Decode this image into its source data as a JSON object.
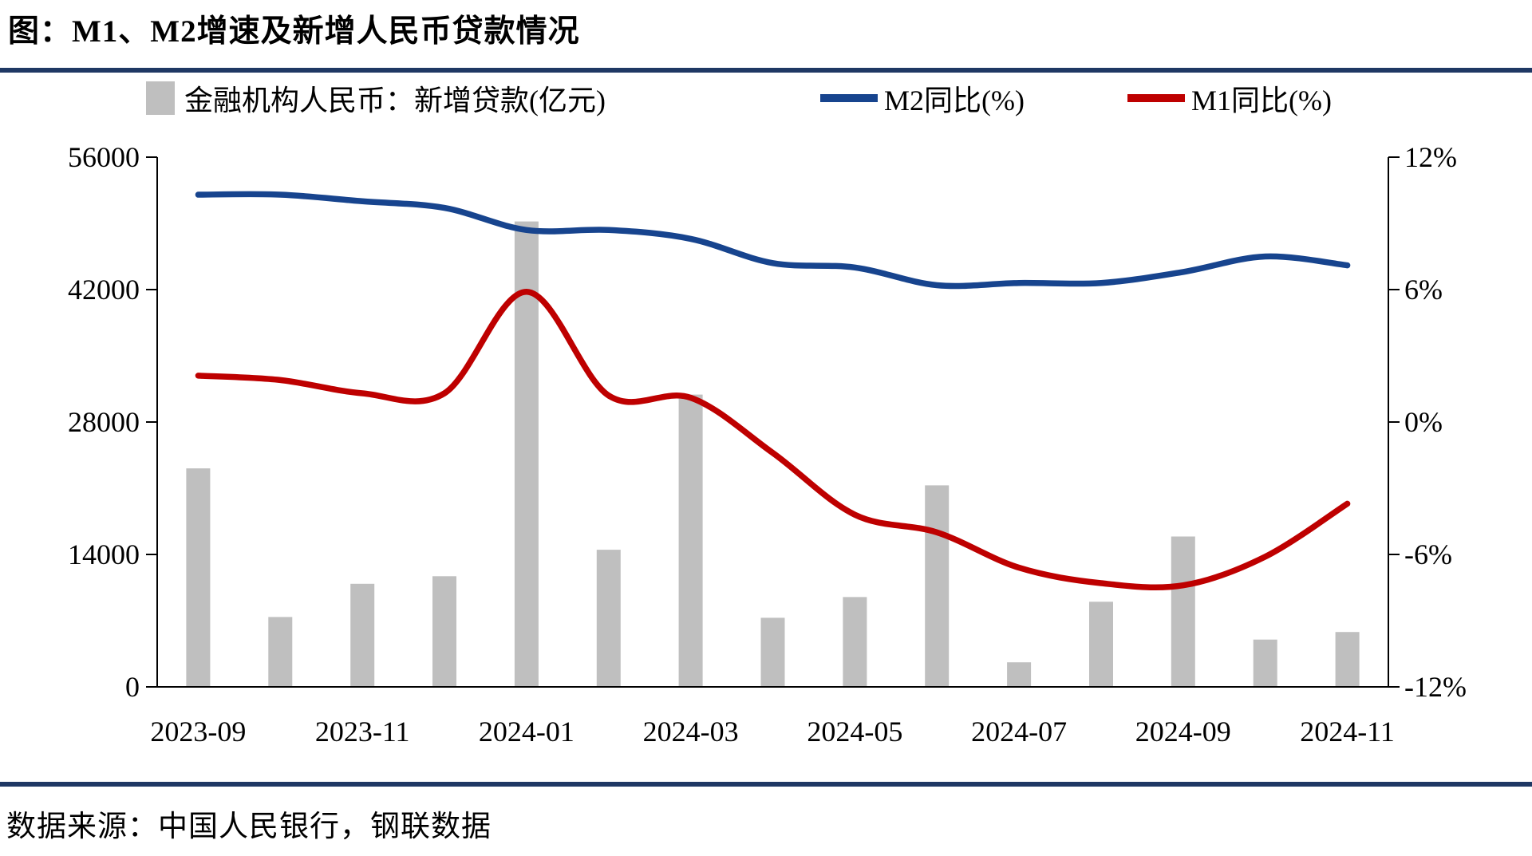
{
  "page": {
    "title": "图：M1、M2增速及新增人民币贷款情况",
    "source": "数据来源：中国人民银行，钢联数据"
  },
  "colors": {
    "rule_navy": "#1F3864",
    "bar_gray": "#BFBFBF",
    "m2_navy": "#17448E",
    "m1_red": "#BE0000",
    "axis_black": "#000000"
  },
  "legend": {
    "items": [
      {
        "label": "金融机构人民币：新增贷款(亿元)",
        "marker": "bar",
        "color": "#BFBFBF"
      },
      {
        "label": "M2同比(%)",
        "marker": "line",
        "color": "#17448E"
      },
      {
        "label": "M1同比(%)",
        "marker": "line",
        "color": "#BE0000"
      }
    ]
  },
  "chart_data": {
    "type": "bar+line",
    "title": "图：M1、M2增速及新增人民币贷款情况",
    "categories": [
      "2023-09",
      "2023-10",
      "2023-11",
      "2023-12",
      "2024-01",
      "2024-02",
      "2024-03",
      "2024-04",
      "2024-05",
      "2024-06",
      "2024-07",
      "2024-08",
      "2024-09",
      "2024-10",
      "2024-11"
    ],
    "x_tick_labels": [
      "2023-09",
      "2023-11",
      "2024-01",
      "2024-03",
      "2024-05",
      "2024-07",
      "2024-09",
      "2024-11"
    ],
    "x_tick_indices": [
      0,
      2,
      4,
      6,
      8,
      10,
      12,
      14
    ],
    "series": [
      {
        "name": "金融机构人民币：新增贷款(亿元)",
        "type": "bar",
        "axis": "left",
        "color": "#BFBFBF",
        "values": [
          23100,
          7384,
          10900,
          11700,
          49200,
          14500,
          30900,
          7300,
          9500,
          21300,
          2600,
          9000,
          15900,
          5000,
          5800
        ]
      },
      {
        "name": "M2同比(%)",
        "type": "line",
        "axis": "right",
        "color": "#17448E",
        "values": [
          10.3,
          10.3,
          10.0,
          9.7,
          8.7,
          8.7,
          8.3,
          7.2,
          7.0,
          6.2,
          6.3,
          6.3,
          6.8,
          7.5,
          7.1
        ]
      },
      {
        "name": "M1同比(%)",
        "type": "line",
        "axis": "right",
        "color": "#BE0000",
        "values": [
          2.1,
          1.9,
          1.3,
          1.3,
          5.9,
          1.2,
          1.1,
          -1.4,
          -4.2,
          -5.0,
          -6.6,
          -7.3,
          -7.4,
          -6.1,
          -3.7
        ]
      }
    ],
    "left_axis": {
      "min": 0,
      "max": 56000,
      "tick_values": [
        0,
        14000,
        28000,
        42000,
        56000
      ],
      "tick_labels": [
        "0",
        "14000",
        "28000",
        "42000",
        "56000"
      ]
    },
    "right_axis": {
      "min": -12,
      "max": 12,
      "tick_values": [
        -12,
        -6,
        0,
        6,
        12
      ],
      "tick_labels": [
        "-12%",
        "-6%",
        "0%",
        "6%",
        "12%"
      ]
    },
    "grid": false,
    "legend_position": "top"
  }
}
